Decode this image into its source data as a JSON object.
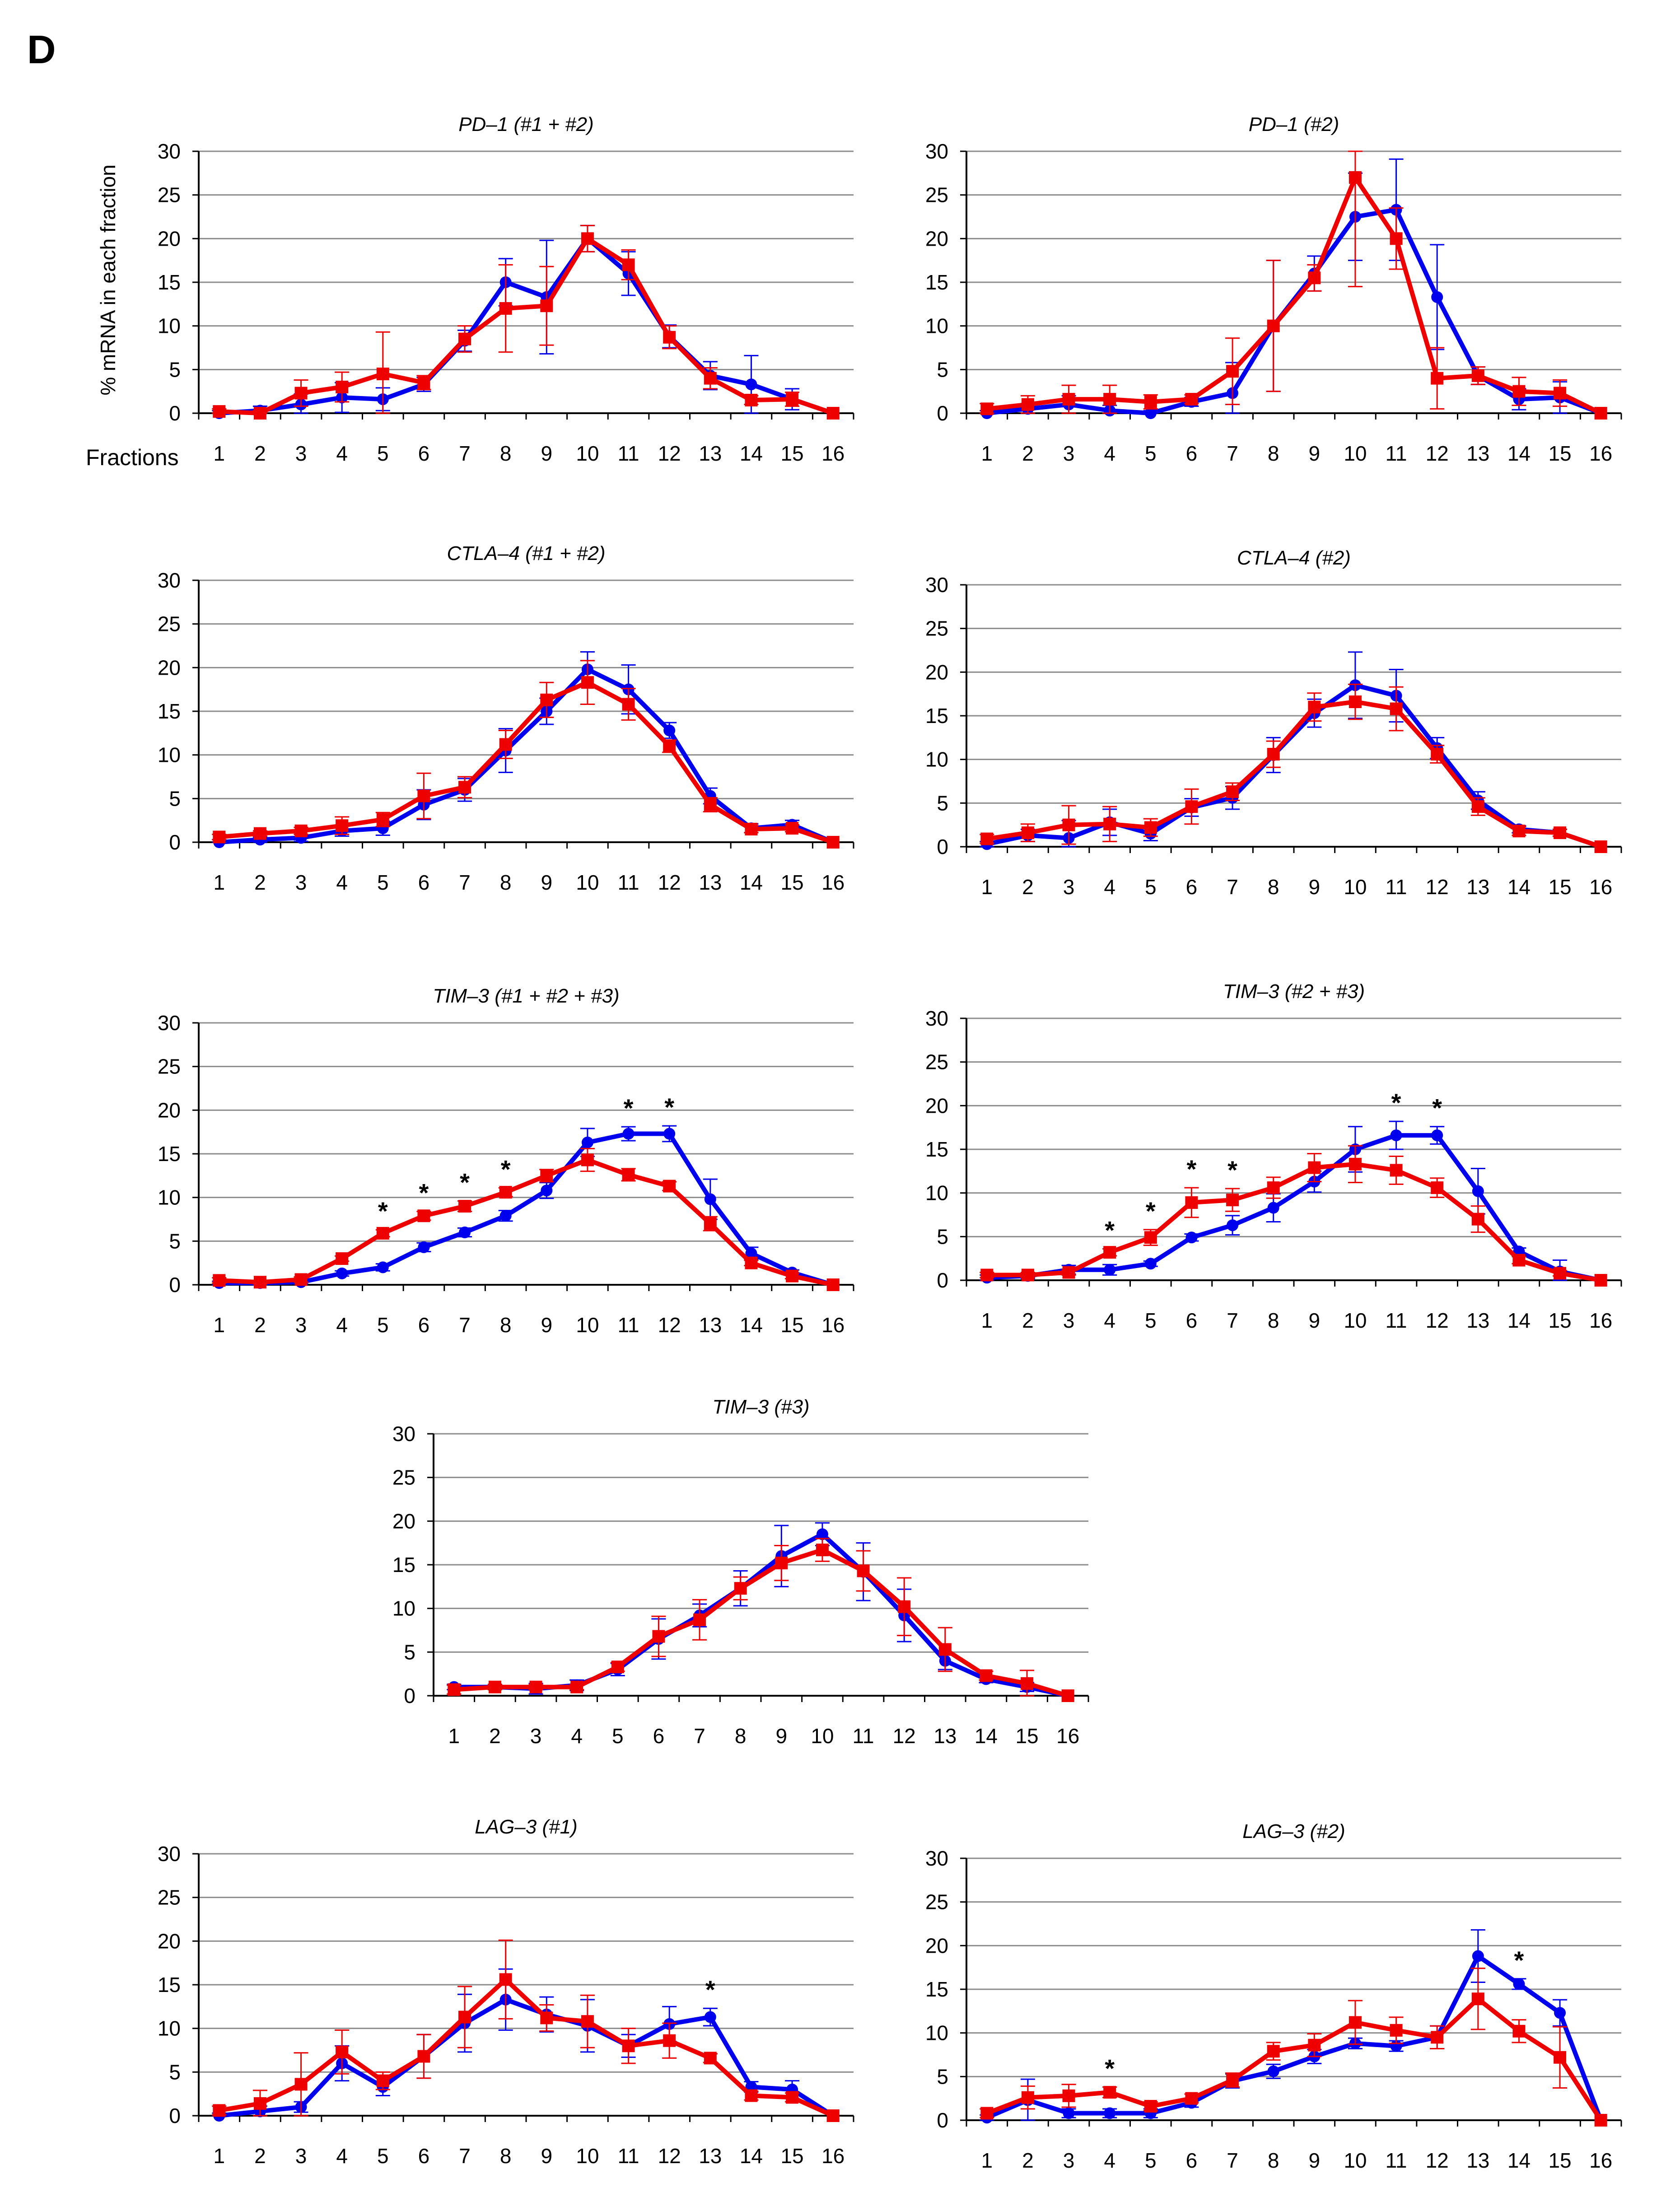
{
  "figure": {
    "panel_label": "D",
    "ylabel": "% mRNA in each fraction",
    "xlabel": "Fractions",
    "colors": {
      "blue": "#0000ee",
      "red": "#ee0000",
      "grid": "#8c8c8c"
    }
  },
  "chart_data": [
    {
      "type": "line",
      "title": "PD–1 (#1 + #2)",
      "x": [
        1,
        2,
        3,
        4,
        5,
        6,
        7,
        8,
        9,
        10,
        11,
        12,
        13,
        14,
        15,
        16
      ],
      "ylim": [
        0,
        30
      ],
      "yticks": [
        0,
        5,
        10,
        15,
        20,
        25,
        30
      ],
      "series": [
        {
          "name": "blue",
          "values": [
            0,
            0.3,
            1,
            1.8,
            1.6,
            3.3,
            8.3,
            15,
            13.3,
            20,
            16,
            8.8,
            4.3,
            3.3,
            1.6,
            0
          ],
          "errors": [
            0.3,
            0.5,
            1.2,
            1.7,
            1.3,
            0.8,
            1.2,
            2.7,
            6.5,
            1.5,
            2.5,
            1.3,
            1.6,
            3.3,
            1.2,
            0
          ]
        },
        {
          "name": "red",
          "values": [
            0.2,
            0,
            2.3,
            3,
            4.5,
            3.5,
            8.5,
            12,
            12.3,
            20,
            17,
            8.7,
            4,
            1.5,
            1.6,
            0
          ],
          "errors": [
            0.3,
            0.3,
            1.5,
            1.7,
            4.8,
            0.8,
            1.5,
            5,
            4.5,
            1.5,
            1.7,
            1.3,
            1.2,
            0.5,
            0.8,
            0
          ]
        }
      ],
      "significant": []
    },
    {
      "type": "line",
      "title": "PD–1 (#2)",
      "x": [
        1,
        2,
        3,
        4,
        5,
        6,
        7,
        8,
        9,
        10,
        11,
        12,
        13,
        14,
        15,
        16
      ],
      "ylim": [
        0,
        30
      ],
      "yticks": [
        0,
        5,
        10,
        15,
        20,
        25,
        30
      ],
      "series": [
        {
          "name": "blue",
          "values": [
            0,
            0.5,
            1,
            0.3,
            0,
            1.3,
            2.3,
            10,
            16,
            22.5,
            23.3,
            13.3,
            4.3,
            1.6,
            1.8,
            0
          ],
          "errors": [
            0.3,
            0.6,
            1,
            0.6,
            0.3,
            0.5,
            3.5,
            7.5,
            2,
            5,
            5.8,
            6,
            1,
            1.2,
            1.8,
            0
          ]
        },
        {
          "name": "red",
          "values": [
            0.5,
            1,
            1.6,
            1.6,
            1.3,
            1.6,
            4.8,
            10,
            15.5,
            27,
            20,
            4,
            4.3,
            2.5,
            2.3,
            0
          ],
          "errors": [
            0.6,
            1,
            1.6,
            1.6,
            0.8,
            0.5,
            3.8,
            7.5,
            1.5,
            12.5,
            3.5,
            3.5,
            1,
            1.6,
            1.5,
            0
          ]
        }
      ],
      "significant": []
    },
    {
      "type": "line",
      "title": "CTLA–4 (#1 + #2)",
      "x": [
        1,
        2,
        3,
        4,
        5,
        6,
        7,
        8,
        9,
        10,
        11,
        12,
        13,
        14,
        15,
        16
      ],
      "ylim": [
        0,
        30
      ],
      "yticks": [
        0,
        5,
        10,
        15,
        20,
        25,
        30
      ],
      "series": [
        {
          "name": "blue",
          "values": [
            0,
            0.3,
            0.5,
            1.3,
            1.6,
            4.3,
            6,
            10.5,
            15,
            19.8,
            17.5,
            12.8,
            5.3,
            1.6,
            2,
            0
          ],
          "errors": [
            0.3,
            0.3,
            0.4,
            0.6,
            0.8,
            1.7,
            1.3,
            2.5,
            1.5,
            2,
            2.8,
            0.9,
            0.9,
            0.5,
            0.5,
            0
          ]
        },
        {
          "name": "red",
          "values": [
            0.6,
            1,
            1.3,
            1.9,
            2.6,
            5.3,
            6.3,
            11.2,
            16.3,
            18.3,
            15.8,
            11,
            4.3,
            1.5,
            1.6,
            0
          ],
          "errors": [
            0.3,
            0.3,
            0.4,
            1,
            0.8,
            2.6,
            1.2,
            1.6,
            2,
            2.5,
            1.8,
            0.7,
            0.8,
            0.4,
            0.4,
            0
          ]
        }
      ],
      "significant": []
    },
    {
      "type": "line",
      "title": "CTLA–4 (#2)",
      "x": [
        1,
        2,
        3,
        4,
        5,
        6,
        7,
        8,
        9,
        10,
        11,
        12,
        13,
        14,
        15,
        16
      ],
      "ylim": [
        0,
        30
      ],
      "yticks": [
        0,
        5,
        10,
        15,
        20,
        25,
        30
      ],
      "series": [
        {
          "name": "blue",
          "values": [
            0.3,
            1.3,
            1,
            2.8,
            1.5,
            4.5,
            5.6,
            10.5,
            15.3,
            18.5,
            17.3,
            11.3,
            5.3,
            2,
            1.6,
            0
          ],
          "errors": [
            0.3,
            0.7,
            2,
            1.5,
            0.8,
            1,
            1.3,
            2,
            1.6,
            3.8,
            3,
            1.2,
            1,
            0.4,
            0.4,
            0
          ]
        },
        {
          "name": "red",
          "values": [
            0.9,
            1.6,
            2.5,
            2.6,
            2.2,
            4.6,
            6.3,
            10.6,
            16,
            16.6,
            15.8,
            10.6,
            4.6,
            1.8,
            1.6,
            0
          ],
          "errors": [
            0.5,
            1,
            2.2,
            2,
            1,
            2,
            1,
            1.5,
            1.6,
            2,
            2.5,
            1,
            1,
            0.5,
            0.4,
            0
          ]
        }
      ],
      "significant": []
    },
    {
      "type": "line",
      "title": "TIM–3 (#1 + #2 + #3)",
      "x": [
        1,
        2,
        3,
        4,
        5,
        6,
        7,
        8,
        9,
        10,
        11,
        12,
        13,
        14,
        15,
        16
      ],
      "ylim": [
        0,
        30
      ],
      "yticks": [
        0,
        5,
        10,
        15,
        20,
        25,
        30
      ],
      "series": [
        {
          "name": "blue",
          "values": [
            0.2,
            0.2,
            0.3,
            1.3,
            2,
            4.3,
            6,
            7.9,
            10.8,
            16.3,
            17.3,
            17.3,
            9.8,
            3.6,
            1.4,
            0
          ],
          "errors": [
            0.2,
            0.2,
            0.2,
            0.3,
            0.4,
            0.5,
            0.5,
            0.6,
            0.9,
            1.6,
            0.8,
            0.9,
            2.3,
            0.7,
            0.3,
            0
          ]
        },
        {
          "name": "red",
          "values": [
            0.5,
            0.3,
            0.6,
            3,
            5.9,
            7.9,
            9,
            10.6,
            12.5,
            14.3,
            12.6,
            11.3,
            7,
            2.5,
            1,
            0
          ],
          "errors": [
            0.3,
            0.2,
            0.3,
            0.3,
            0.4,
            0.5,
            0.6,
            0.5,
            0.7,
            1.3,
            0.7,
            0.5,
            0.8,
            0.3,
            0.3,
            0
          ]
        }
      ],
      "significant": [
        5,
        6,
        7,
        8,
        11,
        12
      ]
    },
    {
      "type": "line",
      "title": "TIM–3 (#2 + #3)",
      "x": [
        1,
        2,
        3,
        4,
        5,
        6,
        7,
        8,
        9,
        10,
        11,
        12,
        13,
        14,
        15,
        16
      ],
      "ylim": [
        0,
        30
      ],
      "yticks": [
        0,
        5,
        10,
        15,
        20,
        25,
        30
      ],
      "series": [
        {
          "name": "blue",
          "values": [
            0.3,
            0.5,
            1.2,
            1.2,
            1.9,
            4.9,
            6.3,
            8.3,
            11.3,
            15,
            16.6,
            16.6,
            10.2,
            3.3,
            1,
            0
          ],
          "errors": [
            0.3,
            0.3,
            0.5,
            0.6,
            0.3,
            0.4,
            1.1,
            1.6,
            1.2,
            2.6,
            1.6,
            1,
            2.6,
            0.4,
            1.3,
            0
          ]
        },
        {
          "name": "red",
          "values": [
            0.6,
            0.6,
            0.9,
            3.2,
            4.9,
            8.9,
            9.2,
            10.6,
            12.9,
            13.3,
            12.6,
            10.6,
            7,
            2.3,
            0.8,
            0
          ]
        },
        {
          "name": "red-errors",
          "values": [
            0.3,
            0.3,
            0.3,
            0.4,
            0.9,
            1.7,
            1.3,
            1.2,
            1.6,
            2.1,
            1.6,
            1.1,
            1.5,
            0.4,
            0.3,
            0
          ]
        }
      ],
      "significant": [
        4,
        5,
        6,
        7,
        11,
        12
      ]
    },
    {
      "type": "line",
      "title": "TIM–3 (#3)",
      "x": [
        1,
        2,
        3,
        4,
        5,
        6,
        7,
        8,
        9,
        10,
        11,
        12,
        13,
        14,
        15,
        16
      ],
      "ylim": [
        0,
        30
      ],
      "yticks": [
        0,
        5,
        10,
        15,
        20,
        25,
        30
      ],
      "series": [
        {
          "name": "blue",
          "values": [
            1,
            1,
            0.8,
            1.2,
            3,
            6.5,
            9.2,
            12.3,
            16,
            18.5,
            14.2,
            9.2,
            4,
            1.9,
            1,
            0
          ],
          "errors": [
            0.3,
            0.3,
            0.6,
            0.6,
            0.7,
            2.3,
            1.3,
            2,
            3.5,
            1.3,
            3.3,
            3,
            1,
            0.4,
            0.5,
            0
          ]
        },
        {
          "name": "red",
          "values": [
            0.7,
            1,
            1,
            1,
            3.3,
            6.8,
            8.7,
            12.3,
            15.2,
            16.7,
            14.3,
            10.2,
            5.3,
            2.3,
            1.4,
            0
          ],
          "errors": [
            0.5,
            0.3,
            0.3,
            0.3,
            0.5,
            2.3,
            2.3,
            1.3,
            2,
            1.3,
            2.3,
            3.3,
            2.5,
            0.5,
            1.5,
            0
          ]
        }
      ],
      "significant": []
    },
    {
      "type": "line",
      "title": "LAG–3 (#1)",
      "x": [
        1,
        2,
        3,
        4,
        5,
        6,
        7,
        8,
        9,
        10,
        11,
        12,
        13,
        14,
        15,
        16
      ],
      "ylim": [
        0,
        30
      ],
      "yticks": [
        0,
        5,
        10,
        15,
        20,
        25,
        30
      ],
      "series": [
        {
          "name": "blue",
          "values": [
            0,
            0.5,
            1,
            6,
            3.3,
            6.8,
            10.6,
            13.3,
            11.6,
            10.3,
            8,
            10.5,
            11.3,
            3.3,
            3,
            0
          ],
          "errors": [
            0.3,
            0.6,
            0.6,
            2,
            1,
            2.5,
            3.3,
            3.5,
            2,
            3,
            1.3,
            2,
            1,
            0.6,
            1,
            0
          ]
        },
        {
          "name": "red",
          "values": [
            0.6,
            1.4,
            3.6,
            7.3,
            4,
            6.8,
            11.3,
            15.6,
            11.2,
            10.8,
            8,
            8.6,
            6.6,
            2.3,
            2.1,
            0
          ],
          "errors": [
            0.5,
            1.5,
            3.6,
            2.5,
            1,
            2.5,
            3.5,
            4.5,
            1.5,
            3,
            2,
            2,
            0.5,
            0.5,
            0.5,
            0
          ]
        }
      ],
      "significant": [
        13
      ]
    },
    {
      "type": "line",
      "title": "LAG–3 (#2)",
      "x": [
        1,
        2,
        3,
        4,
        5,
        6,
        7,
        8,
        9,
        10,
        11,
        12,
        13,
        14,
        15,
        16
      ],
      "ylim": [
        0,
        30
      ],
      "yticks": [
        0,
        5,
        10,
        15,
        20,
        25,
        30
      ],
      "series": [
        {
          "name": "blue",
          "values": [
            0.3,
            2.3,
            0.8,
            0.8,
            0.8,
            2,
            4.5,
            5.6,
            7.3,
            8.8,
            8.5,
            9.5,
            18.8,
            15.6,
            12.3,
            0
          ],
          "errors": [
            0.3,
            2.4,
            0.5,
            0.5,
            0.5,
            0.5,
            0.8,
            0.8,
            0.8,
            0.6,
            0.6,
            1.3,
            3,
            0.6,
            1.5,
            0
          ]
        },
        {
          "name": "red",
          "values": [
            0.8,
            2.6,
            2.8,
            3.2,
            1.6,
            2.5,
            4.6,
            7.9,
            8.6,
            11.2,
            10.3,
            9.5,
            13.9,
            10.2,
            7.2,
            0
          ],
          "errors": [
            0.5,
            1.3,
            1.3,
            0.6,
            0.5,
            0.5,
            0.8,
            1,
            1.3,
            2.5,
            1.5,
            1.3,
            3.5,
            1.3,
            3.5,
            0
          ]
        }
      ],
      "significant": [
        4,
        14
      ]
    }
  ]
}
